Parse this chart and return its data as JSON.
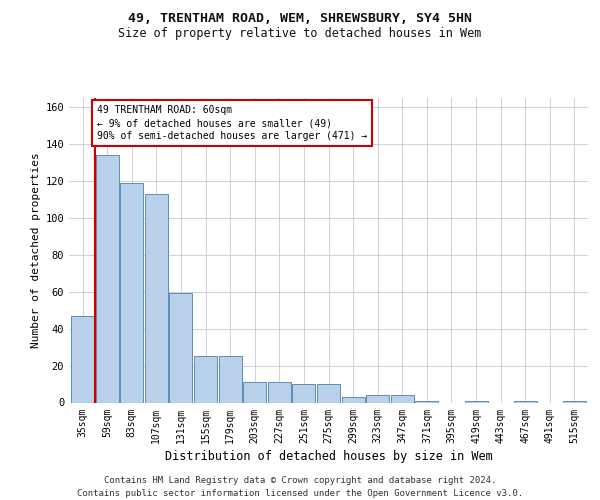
{
  "title1": "49, TRENTHAM ROAD, WEM, SHREWSBURY, SY4 5HN",
  "title2": "Size of property relative to detached houses in Wem",
  "xlabel": "Distribution of detached houses by size in Wem",
  "ylabel": "Number of detached properties",
  "categories": [
    "35sqm",
    "59sqm",
    "83sqm",
    "107sqm",
    "131sqm",
    "155sqm",
    "179sqm",
    "203sqm",
    "227sqm",
    "251sqm",
    "275sqm",
    "299sqm",
    "323sqm",
    "347sqm",
    "371sqm",
    "395sqm",
    "419sqm",
    "443sqm",
    "467sqm",
    "491sqm",
    "515sqm"
  ],
  "values": [
    47,
    134,
    119,
    113,
    59,
    25,
    25,
    11,
    11,
    10,
    10,
    3,
    4,
    4,
    1,
    0,
    1,
    0,
    1,
    0,
    1
  ],
  "bar_color": "#b8d0ea",
  "bar_edge_color": "#5b8db8",
  "red_line_x": 0.5,
  "annotation_line1": "49 TRENTHAM ROAD: 60sqm",
  "annotation_line2": "← 9% of detached houses are smaller (49)",
  "annotation_line3": "90% of semi-detached houses are larger (471) →",
  "annotation_box_edge_color": "#cc0000",
  "ylim": [
    0,
    165
  ],
  "yticks": [
    0,
    20,
    40,
    60,
    80,
    100,
    120,
    140,
    160
  ],
  "footer_line1": "Contains HM Land Registry data © Crown copyright and database right 2024.",
  "footer_line2": "Contains public sector information licensed under the Open Government Licence v3.0.",
  "background_color": "#ffffff",
  "grid_color": "#c8c8d8",
  "title1_fontsize": 9.5,
  "title2_fontsize": 8.5,
  "ylabel_fontsize": 8,
  "xlabel_fontsize": 8.5,
  "tick_fontsize": 7,
  "footer_fontsize": 6.5
}
